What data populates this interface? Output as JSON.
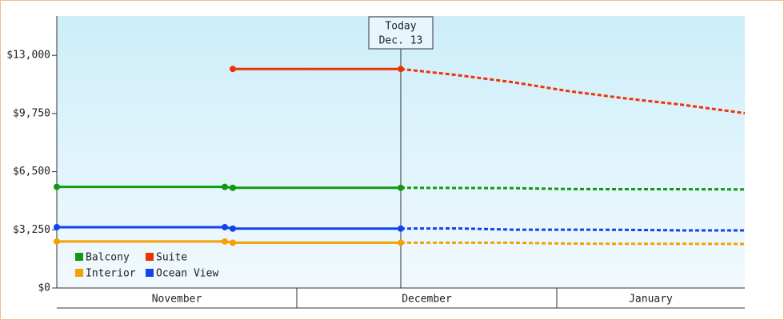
{
  "chart_data": {
    "type": "line",
    "xlim": [
      0,
      86
    ],
    "xticks": [
      {
        "value": 0,
        "label": "November"
      },
      {
        "value": 30,
        "label": "December"
      },
      {
        "value": 62.5,
        "label": "January"
      }
    ],
    "ylim": [
      0,
      15200
    ],
    "yticks": [
      {
        "value": 0,
        "label": "$0"
      },
      {
        "value": 3250,
        "label": "$3,250"
      },
      {
        "value": 6500,
        "label": "$6,500"
      },
      {
        "value": 9750,
        "label": "$9,750"
      },
      {
        "value": 13000,
        "label": "$13,000"
      }
    ],
    "today": {
      "x": 43,
      "label": "Today",
      "date": "Dec. 13"
    },
    "legend": "lower left",
    "series": [
      {
        "name": "Balcony",
        "color": "#119911",
        "x": [
          0,
          21,
          22,
          43
        ],
        "values": [
          5650,
          5650,
          5600,
          5600
        ],
        "forecast_x": [
          43,
          50,
          57,
          64,
          71,
          78,
          86
        ],
        "forecast_values": [
          5600,
          5590,
          5580,
          5530,
          5520,
          5520,
          5510
        ]
      },
      {
        "name": "Suite",
        "color": "#ee3300",
        "x": [
          22,
          43
        ],
        "values": [
          12240,
          12240
        ],
        "forecast_x": [
          43,
          50,
          57,
          64,
          71,
          78,
          86
        ],
        "forecast_values": [
          12240,
          11900,
          11500,
          11000,
          10600,
          10250,
          9770
        ]
      },
      {
        "name": "Interior",
        "color": "#f4a000",
        "x": [
          0,
          21,
          22,
          43
        ],
        "values": [
          2600,
          2600,
          2530,
          2530
        ],
        "forecast_x": [
          43,
          50,
          57,
          64,
          71,
          78,
          86
        ],
        "forecast_values": [
          2530,
          2530,
          2530,
          2480,
          2470,
          2470,
          2460
        ]
      },
      {
        "name": "Ocean View",
        "color": "#1144ee",
        "x": [
          0,
          21,
          22,
          43
        ],
        "values": [
          3400,
          3400,
          3320,
          3320
        ],
        "forecast_x": [
          43,
          50,
          57,
          64,
          71,
          78,
          86
        ],
        "forecast_values": [
          3320,
          3330,
          3260,
          3260,
          3250,
          3220,
          3220
        ]
      }
    ]
  }
}
